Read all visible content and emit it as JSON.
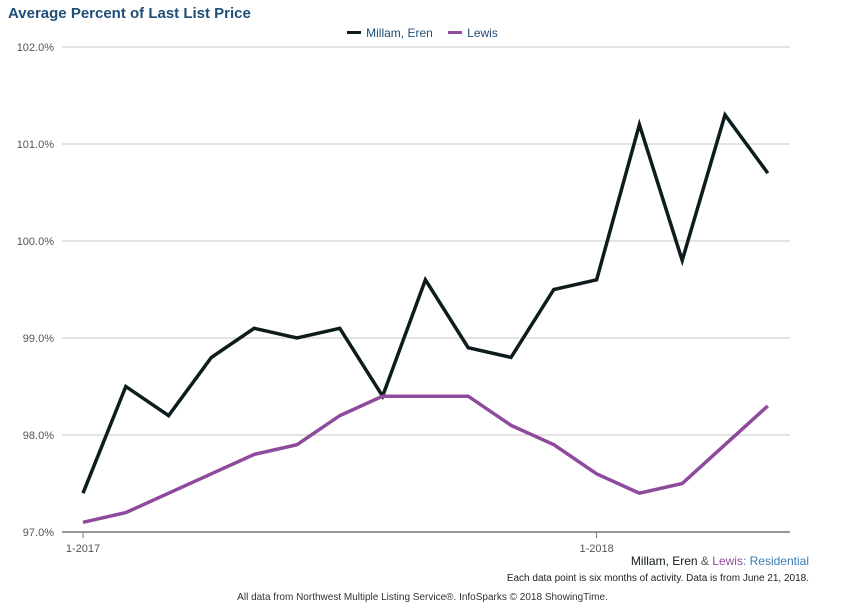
{
  "chart_data": {
    "type": "line",
    "title": "Average Percent of Last List Price",
    "ylim": [
      97.0,
      102.0
    ],
    "yticks": [
      97.0,
      98.0,
      99.0,
      100.0,
      101.0,
      102.0
    ],
    "ytick_labels": [
      "97.0%",
      "98.0%",
      "99.0%",
      "100.0%",
      "101.0%",
      "102.0%"
    ],
    "xticks": [
      {
        "index": 0,
        "label": "1-2017"
      },
      {
        "index": 12,
        "label": "1-2018"
      }
    ],
    "grid": true,
    "legend_position": "top-center",
    "series": [
      {
        "name": "Millam, Eren",
        "color": "#0d1c1c",
        "values": [
          97.4,
          98.5,
          98.2,
          98.8,
          99.1,
          99.0,
          99.1,
          98.4,
          99.6,
          98.9,
          98.8,
          99.5,
          99.6,
          101.2,
          99.8,
          101.3,
          100.7
        ]
      },
      {
        "name": "Lewis",
        "color": "#8e4a9c",
        "values": [
          97.1,
          97.2,
          97.4,
          97.6,
          97.8,
          97.9,
          98.2,
          98.4,
          98.4,
          98.4,
          98.1,
          97.9,
          97.6,
          97.4,
          97.5,
          97.9,
          98.3
        ]
      }
    ]
  },
  "subtitle": {
    "part1": "Millam, Eren",
    "amp": " & ",
    "part2": "Lewis",
    "part3": ": Residential"
  },
  "note": "Each data point is six months of activity. Data is from June 21, 2018.",
  "footer": "All data from Northwest Multiple Listing Service®. InfoSparks © 2018 ShowingTime."
}
